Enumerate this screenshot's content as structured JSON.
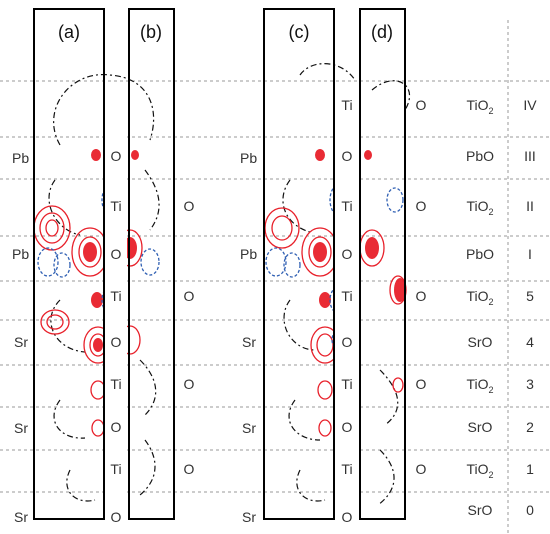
{
  "panels": [
    {
      "id": "a",
      "label": "(a)"
    },
    {
      "id": "b",
      "label": "(b)"
    },
    {
      "id": "c",
      "label": "(c)"
    },
    {
      "id": "d",
      "label": "(d)"
    }
  ],
  "left_species_1": [
    "Pb",
    "Pb",
    "Sr",
    "Sr",
    "Sr"
  ],
  "left_species_2": [
    "Pb",
    "Pb",
    "Sr",
    "Sr",
    "Sr"
  ],
  "middle_atoms_1": [
    "O",
    "Ti",
    "O",
    "Ti",
    "O",
    "Ti",
    "O",
    "Ti",
    "O"
  ],
  "middle_atoms_2": [
    "Ti",
    "O",
    "Ti",
    "O",
    "Ti",
    "O",
    "Ti",
    "O",
    "Ti",
    "O"
  ],
  "right_o_1": [
    "O",
    "O",
    "O",
    "O"
  ],
  "right_o_2": [
    "O",
    "O",
    "O",
    "O",
    "O"
  ],
  "layers": [
    {
      "formula": "TiO",
      "sub": "2",
      "index": "IV"
    },
    {
      "formula": "PbO",
      "sub": "",
      "index": "III"
    },
    {
      "formula": "TiO",
      "sub": "2",
      "index": "II"
    },
    {
      "formula": "PbO",
      "sub": "",
      "index": "I"
    },
    {
      "formula": "TiO",
      "sub": "2",
      "index": "5"
    },
    {
      "formula": "SrO",
      "sub": "",
      "index": "4"
    },
    {
      "formula": "TiO",
      "sub": "2",
      "index": "3"
    },
    {
      "formula": "SrO",
      "sub": "",
      "index": "2"
    },
    {
      "formula": "TiO",
      "sub": "2",
      "index": "1"
    },
    {
      "formula": "SrO",
      "sub": "",
      "index": "0"
    }
  ],
  "colors": {
    "positive_contour": "#e8202a",
    "negative_contour": "#2f5fb3",
    "zero_contour": "#111111",
    "guide_lines": "#999999",
    "frame": "#000000"
  }
}
